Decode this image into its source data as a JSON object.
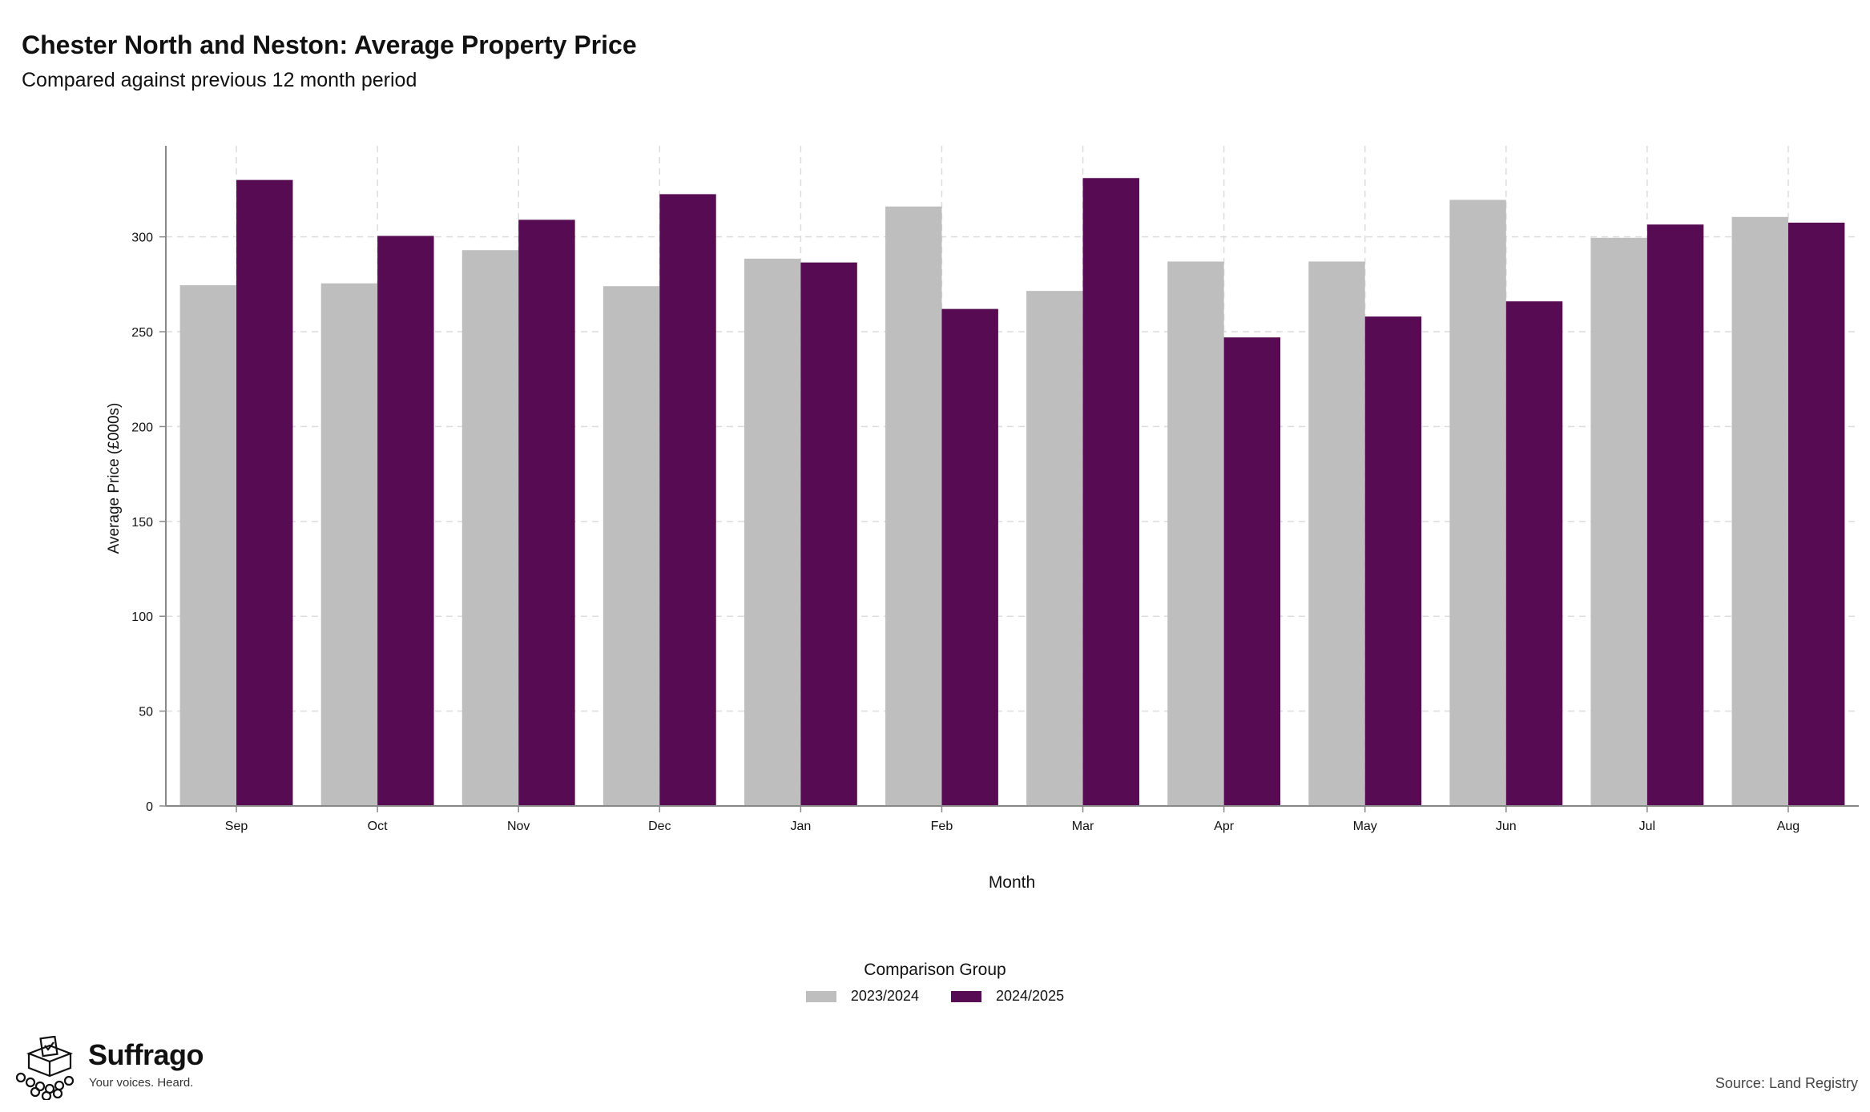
{
  "header": {
    "title": "Chester North and Neston: Average Property Price",
    "subtitle": "Compared against previous 12 month period"
  },
  "legend": {
    "title": "Comparison Group",
    "items": [
      {
        "label": "2023/2024",
        "color": "#bebebe"
      },
      {
        "label": "2024/2025",
        "color": "#560b52"
      }
    ]
  },
  "footer": {
    "brand": "Suffrago",
    "tagline": "Your voices. Heard.",
    "source": "Source: Land Registry"
  },
  "chart_data": {
    "type": "bar",
    "xlabel": "Month",
    "ylabel": "Average Price (£000s)",
    "ylim": [
      0,
      348
    ],
    "yticks": [
      0,
      50,
      100,
      150,
      200,
      250,
      300
    ],
    "grid": true,
    "categories": [
      "Sep",
      "Oct",
      "Nov",
      "Dec",
      "Jan",
      "Feb",
      "Mar",
      "Apr",
      "May",
      "Jun",
      "Jul",
      "Aug"
    ],
    "series": [
      {
        "name": "2023/2024",
        "color": "#bebebe",
        "values": [
          274.5,
          275.5,
          293,
          274,
          288.5,
          316,
          271.5,
          287,
          287,
          319.5,
          299.5,
          310.5
        ]
      },
      {
        "name": "2024/2025",
        "color": "#560b52",
        "values": [
          330,
          300.5,
          309,
          322.5,
          286.5,
          262,
          331,
          247,
          258,
          266,
          306.5,
          307.5
        ]
      }
    ]
  }
}
